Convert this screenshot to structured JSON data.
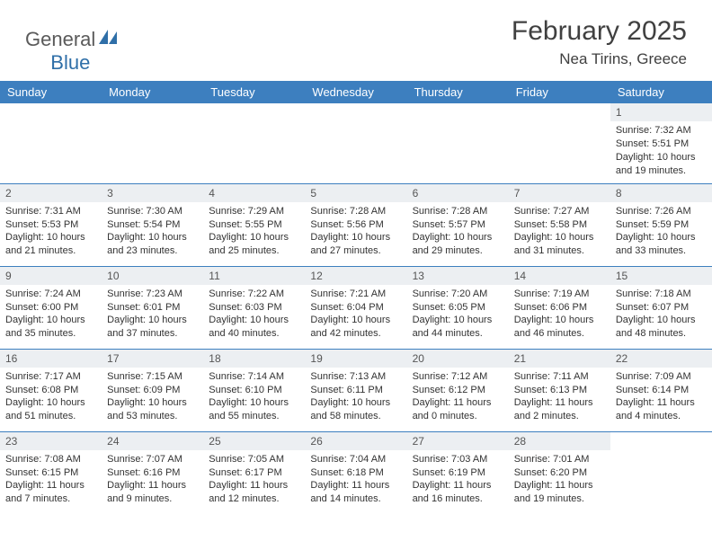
{
  "brand": {
    "text1": "General",
    "text2": "Blue"
  },
  "title": "February 2025",
  "location": "Nea Tirins, Greece",
  "colors": {
    "header_bg": "#3d7fbf",
    "header_text": "#ffffff",
    "daynum_bg": "#eceff2",
    "border": "#3d7fbf",
    "text": "#333333",
    "brand_gray": "#5a5a5a",
    "brand_blue": "#2f6fa8"
  },
  "weekdays": [
    "Sunday",
    "Monday",
    "Tuesday",
    "Wednesday",
    "Thursday",
    "Friday",
    "Saturday"
  ],
  "weeks": [
    [
      null,
      null,
      null,
      null,
      null,
      null,
      {
        "n": "1",
        "sr": "Sunrise: 7:32 AM",
        "ss": "Sunset: 5:51 PM",
        "dl": "Daylight: 10 hours and 19 minutes."
      }
    ],
    [
      {
        "n": "2",
        "sr": "Sunrise: 7:31 AM",
        "ss": "Sunset: 5:53 PM",
        "dl": "Daylight: 10 hours and 21 minutes."
      },
      {
        "n": "3",
        "sr": "Sunrise: 7:30 AM",
        "ss": "Sunset: 5:54 PM",
        "dl": "Daylight: 10 hours and 23 minutes."
      },
      {
        "n": "4",
        "sr": "Sunrise: 7:29 AM",
        "ss": "Sunset: 5:55 PM",
        "dl": "Daylight: 10 hours and 25 minutes."
      },
      {
        "n": "5",
        "sr": "Sunrise: 7:28 AM",
        "ss": "Sunset: 5:56 PM",
        "dl": "Daylight: 10 hours and 27 minutes."
      },
      {
        "n": "6",
        "sr": "Sunrise: 7:28 AM",
        "ss": "Sunset: 5:57 PM",
        "dl": "Daylight: 10 hours and 29 minutes."
      },
      {
        "n": "7",
        "sr": "Sunrise: 7:27 AM",
        "ss": "Sunset: 5:58 PM",
        "dl": "Daylight: 10 hours and 31 minutes."
      },
      {
        "n": "8",
        "sr": "Sunrise: 7:26 AM",
        "ss": "Sunset: 5:59 PM",
        "dl": "Daylight: 10 hours and 33 minutes."
      }
    ],
    [
      {
        "n": "9",
        "sr": "Sunrise: 7:24 AM",
        "ss": "Sunset: 6:00 PM",
        "dl": "Daylight: 10 hours and 35 minutes."
      },
      {
        "n": "10",
        "sr": "Sunrise: 7:23 AM",
        "ss": "Sunset: 6:01 PM",
        "dl": "Daylight: 10 hours and 37 minutes."
      },
      {
        "n": "11",
        "sr": "Sunrise: 7:22 AM",
        "ss": "Sunset: 6:03 PM",
        "dl": "Daylight: 10 hours and 40 minutes."
      },
      {
        "n": "12",
        "sr": "Sunrise: 7:21 AM",
        "ss": "Sunset: 6:04 PM",
        "dl": "Daylight: 10 hours and 42 minutes."
      },
      {
        "n": "13",
        "sr": "Sunrise: 7:20 AM",
        "ss": "Sunset: 6:05 PM",
        "dl": "Daylight: 10 hours and 44 minutes."
      },
      {
        "n": "14",
        "sr": "Sunrise: 7:19 AM",
        "ss": "Sunset: 6:06 PM",
        "dl": "Daylight: 10 hours and 46 minutes."
      },
      {
        "n": "15",
        "sr": "Sunrise: 7:18 AM",
        "ss": "Sunset: 6:07 PM",
        "dl": "Daylight: 10 hours and 48 minutes."
      }
    ],
    [
      {
        "n": "16",
        "sr": "Sunrise: 7:17 AM",
        "ss": "Sunset: 6:08 PM",
        "dl": "Daylight: 10 hours and 51 minutes."
      },
      {
        "n": "17",
        "sr": "Sunrise: 7:15 AM",
        "ss": "Sunset: 6:09 PM",
        "dl": "Daylight: 10 hours and 53 minutes."
      },
      {
        "n": "18",
        "sr": "Sunrise: 7:14 AM",
        "ss": "Sunset: 6:10 PM",
        "dl": "Daylight: 10 hours and 55 minutes."
      },
      {
        "n": "19",
        "sr": "Sunrise: 7:13 AM",
        "ss": "Sunset: 6:11 PM",
        "dl": "Daylight: 10 hours and 58 minutes."
      },
      {
        "n": "20",
        "sr": "Sunrise: 7:12 AM",
        "ss": "Sunset: 6:12 PM",
        "dl": "Daylight: 11 hours and 0 minutes."
      },
      {
        "n": "21",
        "sr": "Sunrise: 7:11 AM",
        "ss": "Sunset: 6:13 PM",
        "dl": "Daylight: 11 hours and 2 minutes."
      },
      {
        "n": "22",
        "sr": "Sunrise: 7:09 AM",
        "ss": "Sunset: 6:14 PM",
        "dl": "Daylight: 11 hours and 4 minutes."
      }
    ],
    [
      {
        "n": "23",
        "sr": "Sunrise: 7:08 AM",
        "ss": "Sunset: 6:15 PM",
        "dl": "Daylight: 11 hours and 7 minutes."
      },
      {
        "n": "24",
        "sr": "Sunrise: 7:07 AM",
        "ss": "Sunset: 6:16 PM",
        "dl": "Daylight: 11 hours and 9 minutes."
      },
      {
        "n": "25",
        "sr": "Sunrise: 7:05 AM",
        "ss": "Sunset: 6:17 PM",
        "dl": "Daylight: 11 hours and 12 minutes."
      },
      {
        "n": "26",
        "sr": "Sunrise: 7:04 AM",
        "ss": "Sunset: 6:18 PM",
        "dl": "Daylight: 11 hours and 14 minutes."
      },
      {
        "n": "27",
        "sr": "Sunrise: 7:03 AM",
        "ss": "Sunset: 6:19 PM",
        "dl": "Daylight: 11 hours and 16 minutes."
      },
      {
        "n": "28",
        "sr": "Sunrise: 7:01 AM",
        "ss": "Sunset: 6:20 PM",
        "dl": "Daylight: 11 hours and 19 minutes."
      },
      null
    ]
  ]
}
